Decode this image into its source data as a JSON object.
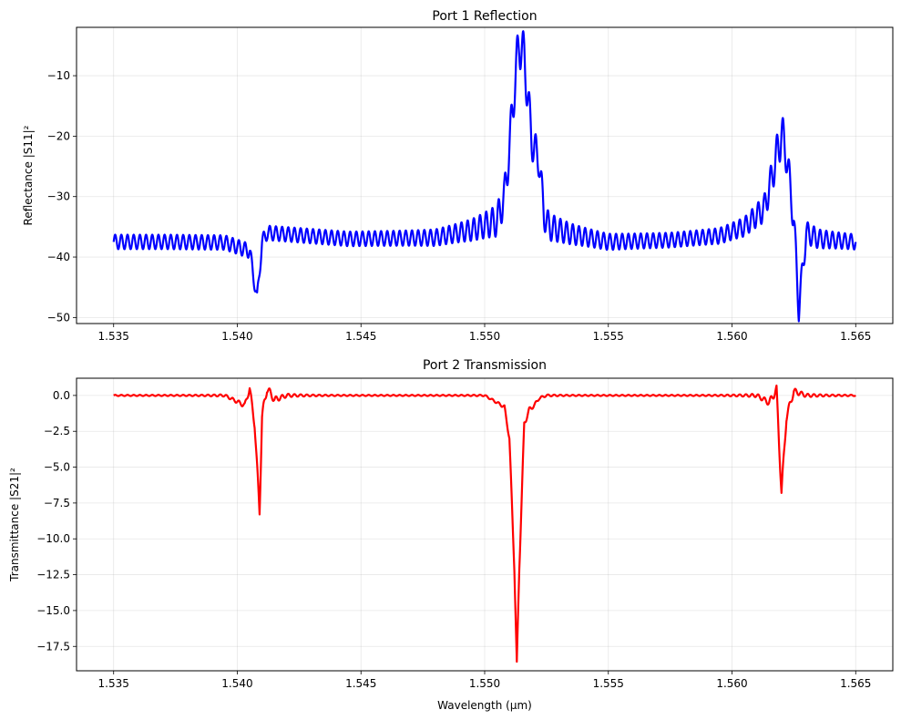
{
  "chart_data": [
    {
      "type": "line",
      "title": "Port 1 Reflection",
      "xlabel": "",
      "ylabel": "Reflectance |S11|²",
      "xlim": [
        1.5335,
        1.5665
      ],
      "ylim": [
        -51,
        -2
      ],
      "xticks": [
        1.535,
        1.54,
        1.545,
        1.55,
        1.555,
        1.56,
        1.565
      ],
      "xtick_labels": [
        "1.535",
        "1.540",
        "1.545",
        "1.550",
        "1.555",
        "1.560",
        "1.565"
      ],
      "yticks": [
        -50,
        -40,
        -30,
        -20,
        -10
      ],
      "ytick_labels": [
        "−50",
        "−40",
        "−30",
        "−20",
        "−10"
      ],
      "grid": true,
      "series": [
        {
          "color": "#0000ff",
          "x": [
            1.535,
            1.5372,
            1.5395,
            1.5405,
            1.5408,
            1.541,
            1.5412,
            1.5445,
            1.548,
            1.5495,
            1.5505,
            1.5508,
            1.551,
            1.5512,
            1.5514,
            1.5516,
            1.5519,
            1.552,
            1.5522,
            1.5524,
            1.5526,
            1.5535,
            1.555,
            1.5575,
            1.5595,
            1.5605,
            1.5613,
            1.5616,
            1.562,
            1.5622,
            1.5625,
            1.5627,
            1.563,
            1.5635,
            1.565
          ],
          "y": [
            -37.5,
            -37.5,
            -37.6,
            -39,
            -47,
            -37.5,
            -36,
            -37,
            -36.8,
            -35.5,
            -34,
            -30,
            -22,
            -12,
            -4.3,
            -7,
            -20.5,
            -22,
            -24,
            -33,
            -35,
            -36.2,
            -37.5,
            -37.2,
            -36.5,
            -35,
            -32,
            -27,
            -19.5,
            -23,
            -34,
            -48.5,
            -36,
            -37,
            -37.5
          ]
        }
      ]
    },
    {
      "type": "line",
      "title": "Port 2 Transmission",
      "xlabel": "Wavelength (µm)",
      "ylabel": "Transmittance |S21|²",
      "xlim": [
        1.5335,
        1.5665
      ],
      "ylim": [
        -19.2,
        1.2
      ],
      "xticks": [
        1.535,
        1.54,
        1.545,
        1.55,
        1.555,
        1.56,
        1.565
      ],
      "xtick_labels": [
        "1.535",
        "1.540",
        "1.545",
        "1.550",
        "1.555",
        "1.560",
        "1.565"
      ],
      "yticks": [
        0.0,
        -2.5,
        -5.0,
        -7.5,
        -10.0,
        -12.5,
        -15.0,
        -17.5
      ],
      "ytick_labels": [
        "0.0",
        "−2.5",
        "−5.0",
        "−7.5",
        "−10.0",
        "−12.5",
        "−15.0",
        "−17.5"
      ],
      "grid": true,
      "series": [
        {
          "color": "#ff0000",
          "x": [
            1.535,
            1.5395,
            1.5403,
            1.5405,
            1.5407,
            1.5409,
            1.541,
            1.5412,
            1.5415,
            1.542,
            1.55,
            1.5508,
            1.551,
            1.5512,
            1.5513,
            1.5514,
            1.5516,
            1.5518,
            1.552,
            1.5522,
            1.5525,
            1.561,
            1.5615,
            1.5618,
            1.562,
            1.5622,
            1.5625,
            1.563,
            1.565
          ],
          "y": [
            0.0,
            0.0,
            -0.7,
            0.5,
            -2,
            -8.1,
            -1.5,
            0.5,
            -0.3,
            0.0,
            0.0,
            -0.8,
            -3,
            -12,
            -18.8,
            -12,
            -2,
            -1.0,
            -0.7,
            -0.2,
            0.0,
            0.0,
            -0.5,
            0.4,
            -6.8,
            -1.5,
            0.3,
            0.0,
            0.0
          ]
        }
      ]
    }
  ]
}
